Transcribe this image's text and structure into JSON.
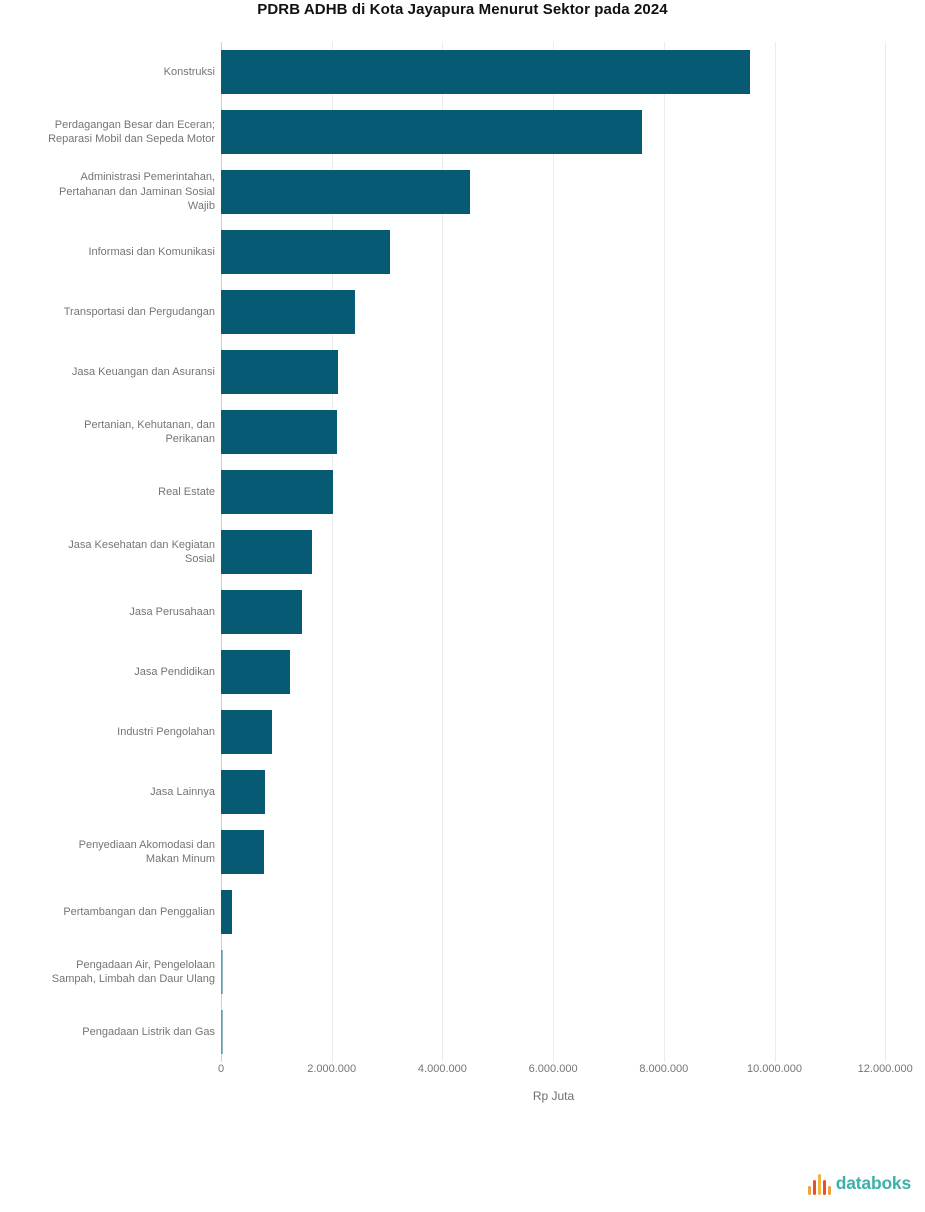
{
  "title": "PDRB ADHB di Kota Jayapura Menurut Sektor pada 2024",
  "chart_data": {
    "type": "bar",
    "orientation": "horizontal",
    "title": "PDRB ADHB di Kota Jayapura Menurut Sektor pada 2024",
    "categories": [
      "Konstruksi",
      "Perdagangan Besar dan Eceran; Reparasi Mobil dan Sepeda Motor",
      "Administrasi Pemerintahan, Pertahanan dan Jaminan Sosial Wajib",
      "Informasi dan Komunikasi",
      "Transportasi dan Pergudangan",
      "Jasa Keuangan dan Asuransi",
      "Pertanian, Kehutanan, dan Perikanan",
      "Real Estate",
      "Jasa Kesehatan dan Kegiatan Sosial",
      "Jasa Perusahaan",
      "Jasa Pendidikan",
      "Industri Pengolahan",
      "Jasa Lainnya",
      "Penyediaan Akomodasi dan Makan Minum",
      "Pertambangan dan Penggalian",
      "Pengadaan Air, Pengelolaan Sampah, Limbah dan Daur Ulang",
      "Pengadaan Listrik dan Gas"
    ],
    "values": [
      9550000,
      7600000,
      4500000,
      3050000,
      2420000,
      2110000,
      2090000,
      2020000,
      1640000,
      1460000,
      1250000,
      920000,
      800000,
      770000,
      200000,
      40000,
      25000
    ],
    "unit": "juta rupiah",
    "xlabel": "Rp Juta",
    "ylabel": "",
    "xlim": [
      0,
      12000000
    ],
    "xticks": [
      0,
      2000000,
      4000000,
      6000000,
      8000000,
      10000000,
      12000000
    ],
    "xtick_labels": [
      "0",
      "2.000.000",
      "4.000.000",
      "6.000.000",
      "8.000.000",
      "10.000.000",
      "12.000.000"
    ],
    "grid": true,
    "legend": false,
    "bar_color": "#075a73",
    "label_color": "#757575"
  },
  "footer": {
    "logo_text": "databoks",
    "logo_text_color": "#3db0a8",
    "logo_icon": "bar-pulse-icon",
    "logo_icon_colors": [
      "#f59e42",
      "#e8502a",
      "#f5b53f",
      "#e8502a",
      "#f59e42"
    ]
  }
}
